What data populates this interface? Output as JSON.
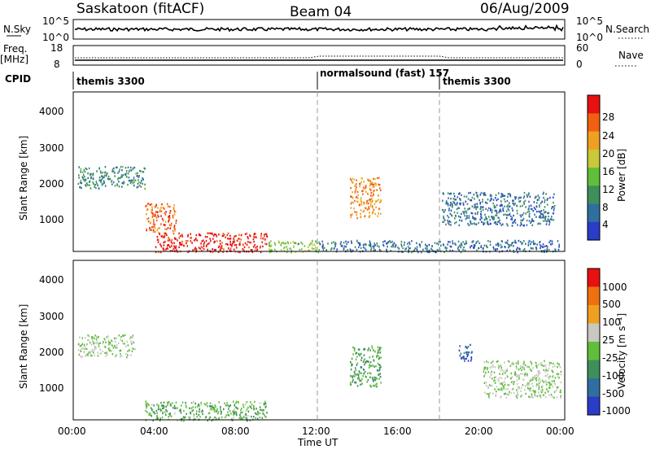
{
  "header": {
    "station": "Saskatoon (fitACF)",
    "beam": "Beam 04",
    "date": "06/Aug/2009"
  },
  "noise_panel": {
    "left_label": "N.Sky",
    "left_ticks": [
      "10^5",
      "10^0"
    ],
    "right_label": "N.Search",
    "right_ticks": [
      "10^5",
      "10^0"
    ]
  },
  "freq_panel": {
    "left_label_1": "Freq.",
    "left_label_2": "[MHz]",
    "left_ticks": [
      "18",
      "8"
    ],
    "right_label": "Nave",
    "right_ticks": [
      "60",
      "0"
    ]
  },
  "cpid": {
    "label": "CPID",
    "segments": [
      {
        "name": "themis 3300",
        "start_h": 0
      },
      {
        "name": "normalsound (fast) 157",
        "start_h": 12
      },
      {
        "name": "themis 3300",
        "start_h": 18
      }
    ]
  },
  "power_panel": {
    "ylabel": "Slant Range [km]",
    "yticks": [
      "4000",
      "3000",
      "2000",
      "1000"
    ],
    "colorbar_label": "Power [dB]",
    "colorbar_ticks": [
      "28",
      "24",
      "20",
      "16",
      "12",
      "8",
      "4"
    ]
  },
  "velocity_panel": {
    "ylabel": "Slant Range [km]",
    "yticks": [
      "4000",
      "3000",
      "2000",
      "1000"
    ],
    "colorbar_label": "Velocity [m s⁻¹]",
    "colorbar_ticks": [
      "1000",
      "500",
      "100",
      "25",
      "-25",
      "-100",
      "-500",
      "-1000"
    ]
  },
  "xaxis": {
    "title": "Time UT",
    "ticks": [
      "00:00",
      "04:00",
      "08:00",
      "12:00",
      "16:00",
      "20:00",
      "00:00"
    ]
  },
  "chart_data": {
    "type": "heatmap",
    "title": "Saskatoon (fitACF) Beam 04 06/Aug/2009",
    "xlabel": "Time UT",
    "ylabel": "Slant Range [km]",
    "xlim_hours": [
      0,
      24
    ],
    "ylim_km": [
      180,
      4500
    ],
    "mode_changes_hours": [
      12,
      18
    ],
    "power_scale_db": [
      0,
      30
    ],
    "velocity_scale_ms": [
      -1000,
      1000
    ],
    "power_colors": [
      "#2a3cc8",
      "#2f6fa0",
      "#3f8f5a",
      "#5fbf3a",
      "#c8c838",
      "#f0a020",
      "#f06010",
      "#e81010"
    ],
    "velocity_colors": [
      "#2a3cc8",
      "#2f6fa0",
      "#3f8f5a",
      "#5fbf3a",
      "#c8c8c0",
      "#f0a020",
      "#f07010",
      "#e81010"
    ],
    "power_features": [
      {
        "t": [
          0.2,
          3.5
        ],
        "r": [
          1900,
          2500
        ],
        "db": 8
      },
      {
        "t": [
          3.5,
          5.0
        ],
        "r": [
          700,
          1500
        ],
        "db": 24
      },
      {
        "t": [
          4.0,
          9.5
        ],
        "r": [
          180,
          700
        ],
        "db": 28
      },
      {
        "t": [
          9.5,
          12.0
        ],
        "r": [
          180,
          500
        ],
        "db": 14
      },
      {
        "t": [
          12.0,
          23.8
        ],
        "r": [
          180,
          500
        ],
        "db": 6
      },
      {
        "t": [
          13.5,
          15.0
        ],
        "r": [
          1100,
          2200
        ],
        "db": 22
      },
      {
        "t": [
          18.0,
          23.5
        ],
        "r": [
          900,
          1800
        ],
        "db": 6
      }
    ],
    "velocity_features": [
      {
        "t": [
          0.2,
          3.0
        ],
        "r": [
          1900,
          2500
        ],
        "v": 0
      },
      {
        "t": [
          3.5,
          9.5
        ],
        "r": [
          180,
          700
        ],
        "v": -200
      },
      {
        "t": [
          13.5,
          15.0
        ],
        "r": [
          1100,
          2200
        ],
        "v": -300
      },
      {
        "t": [
          18.8,
          19.5
        ],
        "r": [
          1800,
          2300
        ],
        "v": -700
      },
      {
        "t": [
          20.0,
          23.8
        ],
        "r": [
          800,
          1800
        ],
        "v": 0
      }
    ]
  }
}
